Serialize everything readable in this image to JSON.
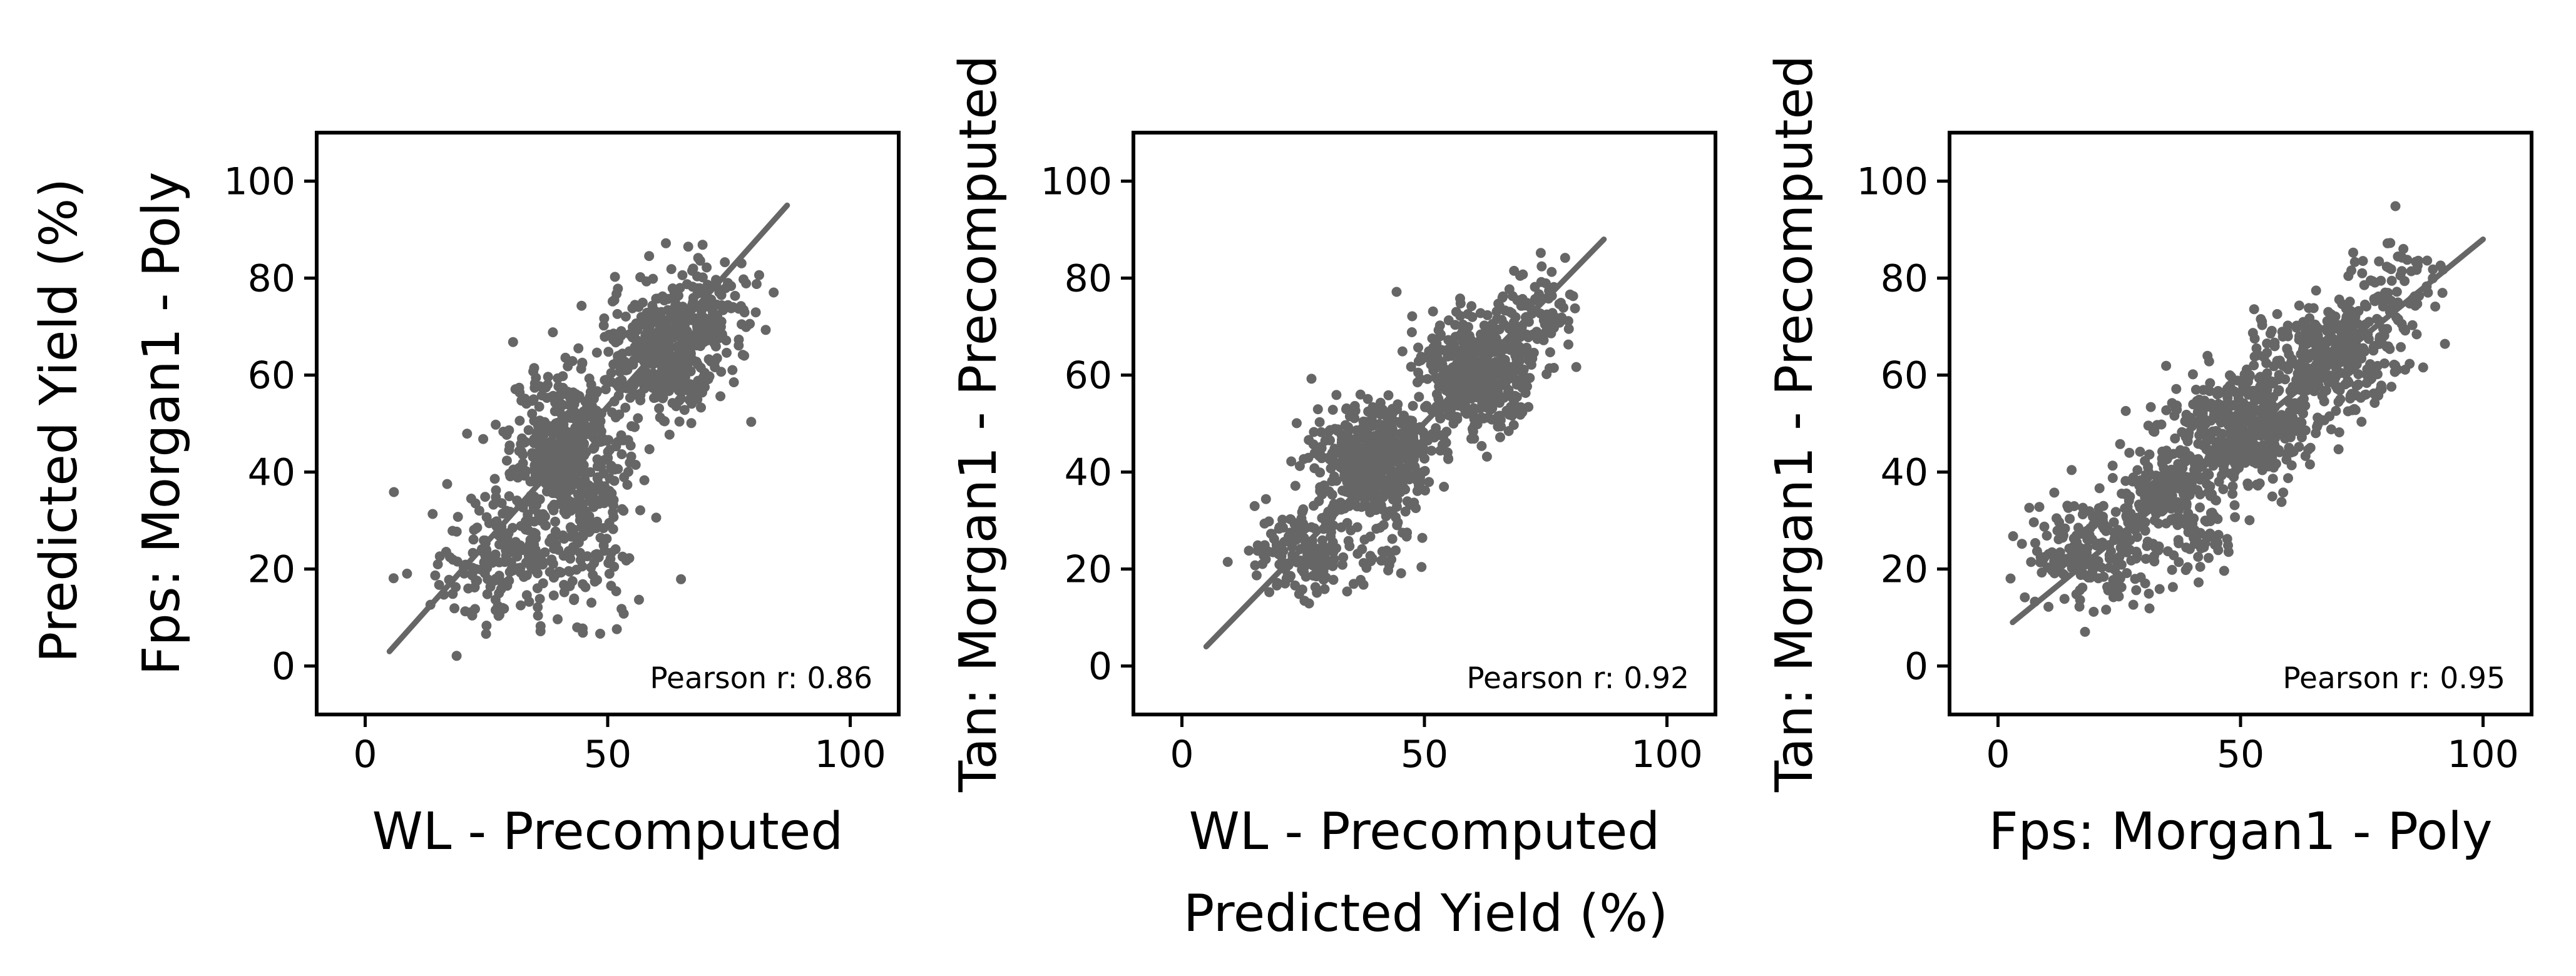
{
  "figure": {
    "supylabel": "Predicted Yield (%)",
    "supxlabel": "Predicted Yield (%)"
  },
  "chart_data": [
    {
      "type": "scatter",
      "xlabel": "WL - Precomputed",
      "ylabel": "Fps: Morgan1 - Poly",
      "xlim": [
        -10,
        110
      ],
      "ylim": [
        -10,
        110
      ],
      "xticks": [
        0,
        50,
        100
      ],
      "yticks": [
        0,
        20,
        40,
        60,
        80,
        100
      ],
      "tick_labels_x": [
        "0",
        "50",
        "100"
      ],
      "tick_labels_y": [
        "0",
        "20",
        "40",
        "60",
        "80",
        "100"
      ],
      "annotation": "Pearson r: 0.86",
      "annotation_position": "bottom-right",
      "fit_line": [
        [
          5,
          3
        ],
        [
          87,
          95
        ]
      ],
      "point_color": "#666666",
      "clusters": [
        {
          "cx": 42,
          "cy": 45,
          "sx": 6,
          "sy": 8,
          "n": 420
        },
        {
          "cx": 62,
          "cy": 65,
          "sx": 6,
          "sy": 7,
          "n": 380
        },
        {
          "cx": 28,
          "cy": 20,
          "sx": 7,
          "sy": 6,
          "n": 150
        },
        {
          "cx": 38,
          "cy": 30,
          "sx": 8,
          "sy": 7,
          "n": 120
        },
        {
          "cx": 72,
          "cy": 75,
          "sx": 5,
          "sy": 6,
          "n": 80
        },
        {
          "cx": 48,
          "cy": 20,
          "sx": 4,
          "sy": 6,
          "n": 40
        }
      ]
    },
    {
      "type": "scatter",
      "xlabel": "WL - Precomputed",
      "ylabel": "Tan: Morgan1 - Precomputed",
      "xlim": [
        -10,
        110
      ],
      "ylim": [
        -10,
        110
      ],
      "xticks": [
        0,
        50,
        100
      ],
      "yticks": [
        0,
        20,
        40,
        60,
        80,
        100
      ],
      "tick_labels_x": [
        "0",
        "50",
        "100"
      ],
      "tick_labels_y": [
        "0",
        "20",
        "40",
        "60",
        "80",
        "100"
      ],
      "annotation": "Pearson r: 0.92",
      "annotation_position": "bottom-right",
      "fit_line": [
        [
          5,
          4
        ],
        [
          87,
          88
        ]
      ],
      "point_color": "#666666",
      "clusters": [
        {
          "cx": 40,
          "cy": 42,
          "sx": 6,
          "sy": 6,
          "n": 480
        },
        {
          "cx": 60,
          "cy": 60,
          "sx": 6,
          "sy": 6,
          "n": 420
        },
        {
          "cx": 25,
          "cy": 24,
          "sx": 6,
          "sy": 5,
          "n": 160
        },
        {
          "cx": 72,
          "cy": 72,
          "sx": 5,
          "sy": 5,
          "n": 100
        },
        {
          "cx": 42,
          "cy": 22,
          "sx": 3,
          "sy": 3,
          "n": 20
        }
      ]
    },
    {
      "type": "scatter",
      "xlabel": "Fps: Morgan1 - Poly",
      "ylabel": "Tan: Morgan1 - Precomputed",
      "xlim": [
        -10,
        110
      ],
      "ylim": [
        -10,
        110
      ],
      "xticks": [
        0,
        50,
        100
      ],
      "yticks": [
        0,
        20,
        40,
        60,
        80,
        100
      ],
      "tick_labels_x": [
        "0",
        "50",
        "100"
      ],
      "tick_labels_y": [
        "0",
        "20",
        "40",
        "60",
        "80",
        "100"
      ],
      "annotation": "Pearson r: 0.95",
      "annotation_position": "bottom-right",
      "fit_line": [
        [
          3,
          9
        ],
        [
          100,
          88
        ]
      ],
      "point_color": "#666666",
      "clusters": [
        {
          "cx": 50,
          "cy": 48,
          "sx": 7,
          "sy": 6,
          "n": 450
        },
        {
          "cx": 68,
          "cy": 63,
          "sx": 7,
          "sy": 6,
          "n": 350
        },
        {
          "cx": 20,
          "cy": 24,
          "sx": 7,
          "sy": 6,
          "n": 220
        },
        {
          "cx": 35,
          "cy": 37,
          "sx": 5,
          "sy": 4,
          "n": 150
        },
        {
          "cx": 42,
          "cy": 28,
          "sx": 4,
          "sy": 4,
          "n": 60
        },
        {
          "cx": 82,
          "cy": 78,
          "sx": 6,
          "sy": 5,
          "n": 70
        }
      ]
    }
  ]
}
